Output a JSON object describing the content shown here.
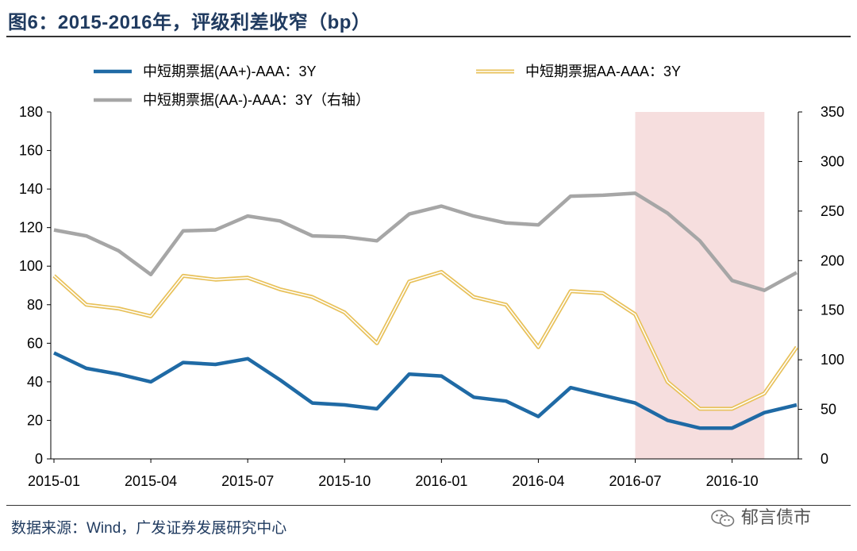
{
  "title": "图6：2015-2016年，评级利差收窄（bp）",
  "source": "数据来源：Wind，广发证券发展研究中心",
  "watermark": "郁言债市",
  "colors": {
    "aa_plus": "#1f6aa5",
    "aa": "#e8c15a",
    "aa_minus": "#a6a6a6",
    "highlight": "#f6dede"
  },
  "chart_data": {
    "type": "line",
    "x": [
      "2015-01",
      "2015-02",
      "2015-03",
      "2015-04",
      "2015-05",
      "2015-06",
      "2015-07",
      "2015-08",
      "2015-09",
      "2015-10",
      "2015-11",
      "2015-12",
      "2016-01",
      "2016-02",
      "2016-03",
      "2016-04",
      "2016-05",
      "2016-06",
      "2016-07",
      "2016-08",
      "2016-09",
      "2016-10",
      "2016-11",
      "2016-12"
    ],
    "x_tick_labels": [
      "2015-01",
      "2015-04",
      "2015-07",
      "2015-10",
      "2016-01",
      "2016-04",
      "2016-07",
      "2016-10"
    ],
    "left_axis": {
      "ylim": [
        0,
        180
      ],
      "ticks": [
        "0",
        "20",
        "40",
        "60",
        "80",
        "100",
        "120",
        "140",
        "160",
        "180"
      ]
    },
    "right_axis": {
      "ylim": [
        0,
        350
      ],
      "ticks": [
        "0",
        "50",
        "100",
        "150",
        "200",
        "250",
        "300",
        "350"
      ]
    },
    "highlight_range": [
      "2016-07",
      "2016-11"
    ],
    "series": [
      {
        "name": "中短期票据(AA+)-AAA：3Y",
        "axis": "left",
        "style": "solid",
        "values": [
          55,
          47,
          44,
          40,
          50,
          49,
          52,
          41,
          29,
          28,
          26,
          44,
          43,
          32,
          30,
          22,
          37,
          33,
          29,
          20,
          16,
          16,
          24,
          28
        ]
      },
      {
        "name": "中短期票据AA-AAA：3Y",
        "axis": "left",
        "style": "double",
        "values": [
          95,
          80,
          78,
          74,
          95,
          93,
          94,
          88,
          84,
          76,
          60,
          92,
          97,
          84,
          80,
          58,
          87,
          86,
          75,
          40,
          26,
          26,
          34,
          58
        ]
      },
      {
        "name": "中短期票据(AA-)-AAA：3Y（右轴）",
        "axis": "right",
        "style": "solid",
        "values": [
          231,
          225,
          210,
          186,
          230,
          231,
          245,
          240,
          225,
          224,
          220,
          247,
          255,
          245,
          238,
          236,
          265,
          266,
          268,
          248,
          220,
          180,
          170,
          188
        ]
      }
    ]
  }
}
